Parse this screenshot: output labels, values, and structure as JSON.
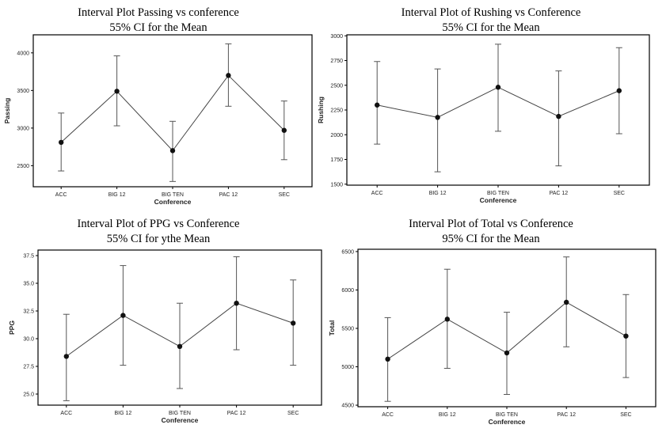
{
  "chart_data": [
    {
      "type": "interval",
      "title": "Interval Plot Passing vs conference",
      "subtitle": "55% CI for the Mean",
      "xlabel": "Conference",
      "ylabel": "Passing",
      "categories": [
        "ACC",
        "BIG 12",
        "BIG TEN",
        "PAC 12",
        "SEC"
      ],
      "means": [
        2810,
        3490,
        2700,
        3700,
        2970
      ],
      "lower": [
        2430,
        3030,
        2290,
        3290,
        2580
      ],
      "upper": [
        3200,
        3960,
        3090,
        4120,
        3360
      ],
      "yticks": [
        2500,
        3000,
        3500,
        4000
      ],
      "ylim": [
        2220,
        4240
      ]
    },
    {
      "type": "interval",
      "title": "Interval Plot of Rushing vs Conference",
      "subtitle": "55% CI for the Mean",
      "xlabel": "Conference",
      "ylabel": "Rushing",
      "categories": [
        "ACC",
        "BIG 12",
        "BIG TEN",
        "PAC 12",
        "SEC"
      ],
      "means": [
        2300,
        2175,
        2480,
        2185,
        2445
      ],
      "lower": [
        1905,
        1625,
        2035,
        1685,
        2010
      ],
      "upper": [
        2740,
        2665,
        2915,
        2645,
        2880
      ],
      "yticks": [
        1500,
        1750,
        2000,
        2250,
        2500,
        2750,
        3000
      ],
      "ylim": [
        1490,
        3010
      ]
    },
    {
      "type": "interval",
      "title": "Interval Plot of PPG vs Conference",
      "subtitle": "55% CI for ythe Mean",
      "xlabel": "Conference",
      "ylabel": "PPG",
      "categories": [
        "ACC",
        "BIG 12",
        "BIG TEN",
        "PAC 12",
        "SEC"
      ],
      "means": [
        28.4,
        32.1,
        29.3,
        33.2,
        31.4
      ],
      "lower": [
        24.4,
        27.6,
        25.5,
        29.0,
        27.6
      ],
      "upper": [
        32.2,
        36.6,
        33.2,
        37.4,
        35.3
      ],
      "yticks": [
        25.0,
        27.5,
        30.0,
        32.5,
        35.0,
        37.5
      ],
      "yticklabels": [
        "25.0",
        "27.5",
        "30.0",
        "32.5",
        "35.0",
        "37.5"
      ],
      "ylim": [
        24.0,
        38.0
      ]
    },
    {
      "type": "interval",
      "title": "Interval Plot of Total vs Conference",
      "subtitle": "95% CI for the Mean",
      "xlabel": "Conference",
      "ylabel": "Total",
      "categories": [
        "ACC",
        "BIG 12",
        "BIG TEN",
        "PAC 12",
        "SEC"
      ],
      "means": [
        5100,
        5620,
        5180,
        5840,
        5400
      ],
      "lower": [
        4550,
        4980,
        4640,
        5260,
        4860
      ],
      "upper": [
        5640,
        6270,
        5710,
        6430,
        5940
      ],
      "yticks": [
        4500,
        5000,
        5500,
        6000,
        6500
      ],
      "ylim": [
        4480,
        6530
      ]
    }
  ]
}
